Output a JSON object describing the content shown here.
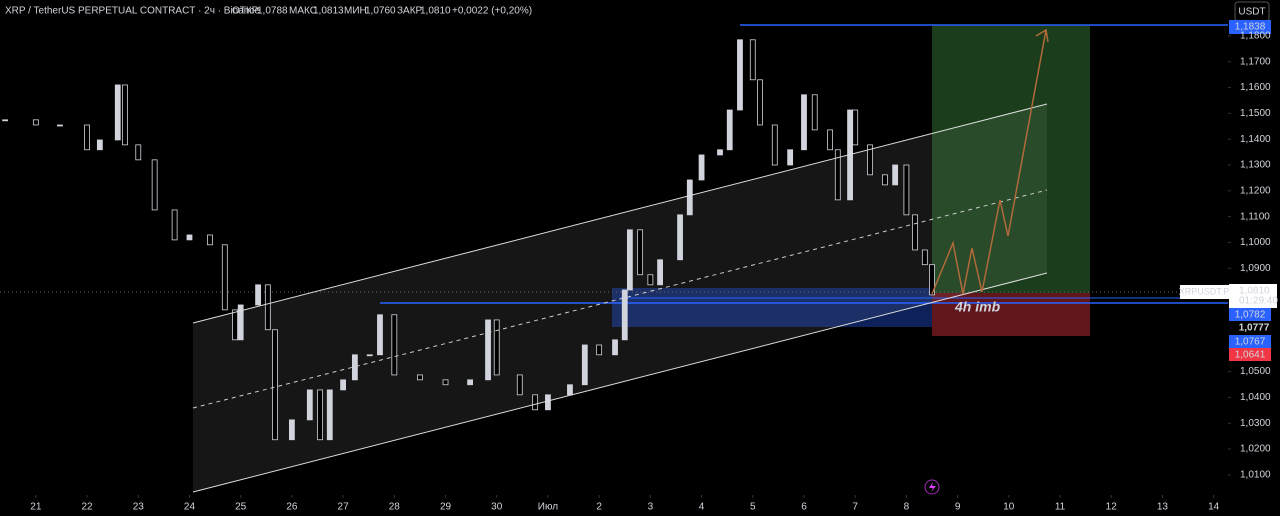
{
  "header": {
    "symbol": "XRP / TetherUS PERPETUAL CONTRACT · 2ч · Binance",
    "open_label": "ОТКР",
    "open": "1,0788",
    "high_label": "МАКС",
    "high": "1,0813",
    "low_label": "МИН",
    "low": "1,0760",
    "close_label": "ЗАКР",
    "close": "1,0810",
    "change": "+0,0022 (+0,20%)",
    "currency": "USDT"
  },
  "price_labels": {
    "top": "1,1838",
    "ticker": "XRPUSDT.P",
    "last": "1,0810",
    "countdown": "01:29:40",
    "level_1": "1,0782",
    "level_2": "1,0777",
    "level_3": "1,0767",
    "stop": "1,0641"
  },
  "annotation": "4h imb",
  "chart_data": {
    "type": "candlestick",
    "color": "#d1d4dc",
    "grid": false,
    "x": [
      -0.6,
      0,
      0.47,
      1.0,
      1.25,
      1.6,
      1.74,
      2.0,
      2.32,
      2.71,
      3.0,
      3.4,
      3.69,
      3.89,
      4.0,
      4.34,
      4.53,
      4.67,
      5.0,
      5.35,
      5.55,
      5.74,
      6.0,
      6.23,
      6.52,
      6.72,
      7.0,
      7.5,
      8.0,
      8.48,
      8.83,
      9.0,
      9.45,
      9.75,
      10.0,
      10.43,
      10.72,
      11.0,
      11.31,
      11.5,
      11.6,
      11.8,
      12.0,
      12.19,
      12.58,
      12.77,
      13.0,
      13.36,
      13.55,
      13.75,
      14.0,
      14.14,
      14.43,
      14.73,
      15.0,
      15.21,
      15.51,
      15.66,
      15.9,
      16.0,
      16.29,
      16.58,
      16.78,
      17.0,
      17.17,
      17.36,
      17.5
    ],
    "values": [
      1.1475,
      1.1455,
      1.1455,
      1.1359,
      1.1397,
      1.161,
      1.1378,
      1.132,
      1.1126,
      1.101,
      1.1029,
      1.0991,
      1.0739,
      1.0623,
      1.0758,
      1.0836,
      1.0662,
      1.0236,
      1.0313,
      1.0429,
      1.0236,
      1.0429,
      1.0468,
      1.0565,
      1.0565,
      1.072,
      1.0487,
      1.0468,
      1.0449,
      1.0468,
      1.07,
      1.0487,
      1.041,
      1.0352,
      1.041,
      1.0449,
      1.0603,
      1.0565,
      1.0623,
      1.0816,
      1.1049,
      1.0875,
      1.0836,
      1.0933,
      1.1107,
      1.1242,
      1.1339,
      1.1359,
      1.1513,
      1.1785,
      1.163,
      1.1455,
      1.13,
      1.1359,
      1.1572,
      1.1436,
      1.1359,
      1.1165,
      1.1513,
      1.1378,
      1.1262,
      1.1223,
      1.13,
      1.1107,
      1.0971,
      1.0914,
      1.0797
    ],
    "xlim": [
      -0.7,
      23.28
    ],
    "xticks": [
      {
        "value": 0,
        "label": "21"
      },
      {
        "value": 1,
        "label": "22"
      },
      {
        "value": 2,
        "label": "23"
      },
      {
        "value": 3,
        "label": "24"
      },
      {
        "value": 4,
        "label": "25"
      },
      {
        "value": 5,
        "label": "26"
      },
      {
        "value": 6,
        "label": "27"
      },
      {
        "value": 7,
        "label": "28"
      },
      {
        "value": 8,
        "label": "29"
      },
      {
        "value": 9,
        "label": "30"
      },
      {
        "value": 10,
        "label": "Июл"
      },
      {
        "value": 11,
        "label": "2"
      },
      {
        "value": 12,
        "label": "3"
      },
      {
        "value": 13,
        "label": "4"
      },
      {
        "value": 14,
        "label": "5"
      },
      {
        "value": 15,
        "label": "6"
      },
      {
        "value": 16,
        "label": "7"
      },
      {
        "value": 17,
        "label": "8"
      },
      {
        "value": 18,
        "label": "9"
      },
      {
        "value": 19,
        "label": "10"
      },
      {
        "value": 20,
        "label": "11"
      },
      {
        "value": 21,
        "label": "12"
      },
      {
        "value": 22,
        "label": "13"
      },
      {
        "value": 23,
        "label": "14"
      }
    ],
    "ylim": [
      1.0022,
      1.1939
    ],
    "yticks": [
      {
        "value": 1.01,
        "label": "1,0100"
      },
      {
        "value": 1.02,
        "label": "1,0200"
      },
      {
        "value": 1.03,
        "label": "1,0300"
      },
      {
        "value": 1.04,
        "label": "1,0400"
      },
      {
        "value": 1.05,
        "label": "1,0500"
      },
      {
        "value": 1.09,
        "label": "1,0900"
      },
      {
        "value": 1.1,
        "label": "1,1000"
      },
      {
        "value": 1.11,
        "label": "1,1100"
      },
      {
        "value": 1.12,
        "label": "1,1200"
      },
      {
        "value": 1.13,
        "label": "1,1300"
      },
      {
        "value": 1.14,
        "label": "1,1400"
      },
      {
        "value": 1.15,
        "label": "1,1500"
      },
      {
        "value": 1.16,
        "label": "1,1600"
      },
      {
        "value": 1.17,
        "label": "1,1700"
      },
      {
        "value": 1.18,
        "label": "1,1800"
      }
    ]
  }
}
